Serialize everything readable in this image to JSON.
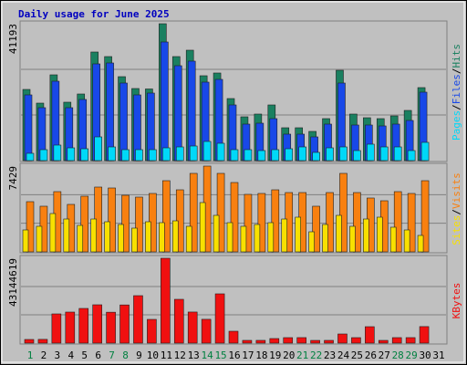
{
  "chart_data": [
    {
      "type": "bar",
      "title": "Daily usage for June 2025",
      "categories": [
        "1",
        "2",
        "3",
        "4",
        "5",
        "6",
        "7",
        "8",
        "9",
        "10",
        "11",
        "12",
        "13",
        "14",
        "15",
        "16",
        "17",
        "18",
        "19",
        "20",
        "21",
        "22",
        "23",
        "24",
        "25",
        "26",
        "27",
        "28",
        "29",
        "30",
        "31"
      ],
      "highlight_days": [
        1,
        7,
        8,
        14,
        15,
        21,
        22,
        28,
        29
      ],
      "highlight_color": "#008040",
      "ylim": [
        0,
        41193
      ],
      "yticks": [
        41193
      ],
      "grid": true,
      "legend_separator": "/",
      "series": [
        {
          "name": "Pages",
          "color": "#00d8f8",
          "values": [
            2197,
            3295,
            4669,
            3845,
            3570,
            7140,
            4119,
            3295,
            3295,
            3295,
            3845,
            4119,
            4394,
            5767,
            5218,
            3295,
            3295,
            3021,
            3295,
            3570,
            4119,
            2472,
            3845,
            4119,
            3021,
            4943,
            4119,
            4119,
            3021,
            5492,
            0
          ]
        },
        {
          "name": "Files",
          "color": "#1848e8",
          "values": [
            19773,
            15928,
            23892,
            15928,
            18400,
            29110,
            29384,
            23343,
            19773,
            20322,
            35701,
            28560,
            29934,
            23617,
            24441,
            16752,
            10985,
            11259,
            12633,
            7964,
            7964,
            7140,
            10985,
            23343,
            10710,
            10710,
            10436,
            10985,
            12083,
            20597,
            0
          ]
        },
        {
          "name": "Hits",
          "color": "#1a8060",
          "values": [
            21420,
            17301,
            25814,
            17576,
            20047,
            32680,
            31307,
            25265,
            21695,
            21558,
            41193,
            31307,
            33229,
            25540,
            26364,
            18674,
            13182,
            14006,
            16752,
            9886,
            9886,
            8788,
            12633,
            27187,
            14006,
            12907,
            12633,
            13456,
            15104,
            21970,
            0
          ]
        }
      ]
    },
    {
      "type": "bar",
      "ylim": [
        0,
        7429
      ],
      "yticks": [
        7429
      ],
      "grid": true,
      "legend_separator": "/",
      "series": [
        {
          "name": "Sites",
          "color": "#f8e000",
          "values": [
            1897,
            2213,
            3319,
            2845,
            2292,
            2845,
            2608,
            2371,
            2055,
            2608,
            2529,
            2687,
            2213,
            4268,
            3161,
            2529,
            2213,
            2371,
            2529,
            2845,
            3003,
            1739,
            2371,
            3161,
            2213,
            2845,
            3003,
            2134,
            1897,
            1423,
            0
          ]
        },
        {
          "name": "Visits",
          "color": "#f88010",
          "values": [
            4347,
            3952,
            5216,
            4110,
            4821,
            5611,
            5532,
            4900,
            4742,
            5058,
            6164,
            5374,
            6797,
            7429,
            6797,
            6006,
            4979,
            5058,
            5374,
            5137,
            5137,
            3952,
            5137,
            6797,
            5137,
            4663,
            4426,
            5216,
            5058,
            6164,
            0
          ]
        }
      ]
    },
    {
      "type": "bar",
      "ylim": [
        0,
        43144619
      ],
      "yticks": [
        43144619
      ],
      "grid": true,
      "series": [
        {
          "name": "KBytes",
          "color": "#f01010",
          "values": [
            1855684,
            1900000,
            14845472,
            15773314,
            17629000,
            19484682,
            15700000,
            19400000,
            24123892,
            12061946,
            43144619,
            22268208,
            15800000,
            12100000,
            25051734,
            6030973,
            1391763,
            1400000,
            2319605,
            2783526,
            2800000,
            1380000,
            1390000,
            4639210,
            2780000,
            8350578,
            1385000,
            2790000,
            2795000,
            8400000,
            0
          ]
        }
      ]
    }
  ]
}
